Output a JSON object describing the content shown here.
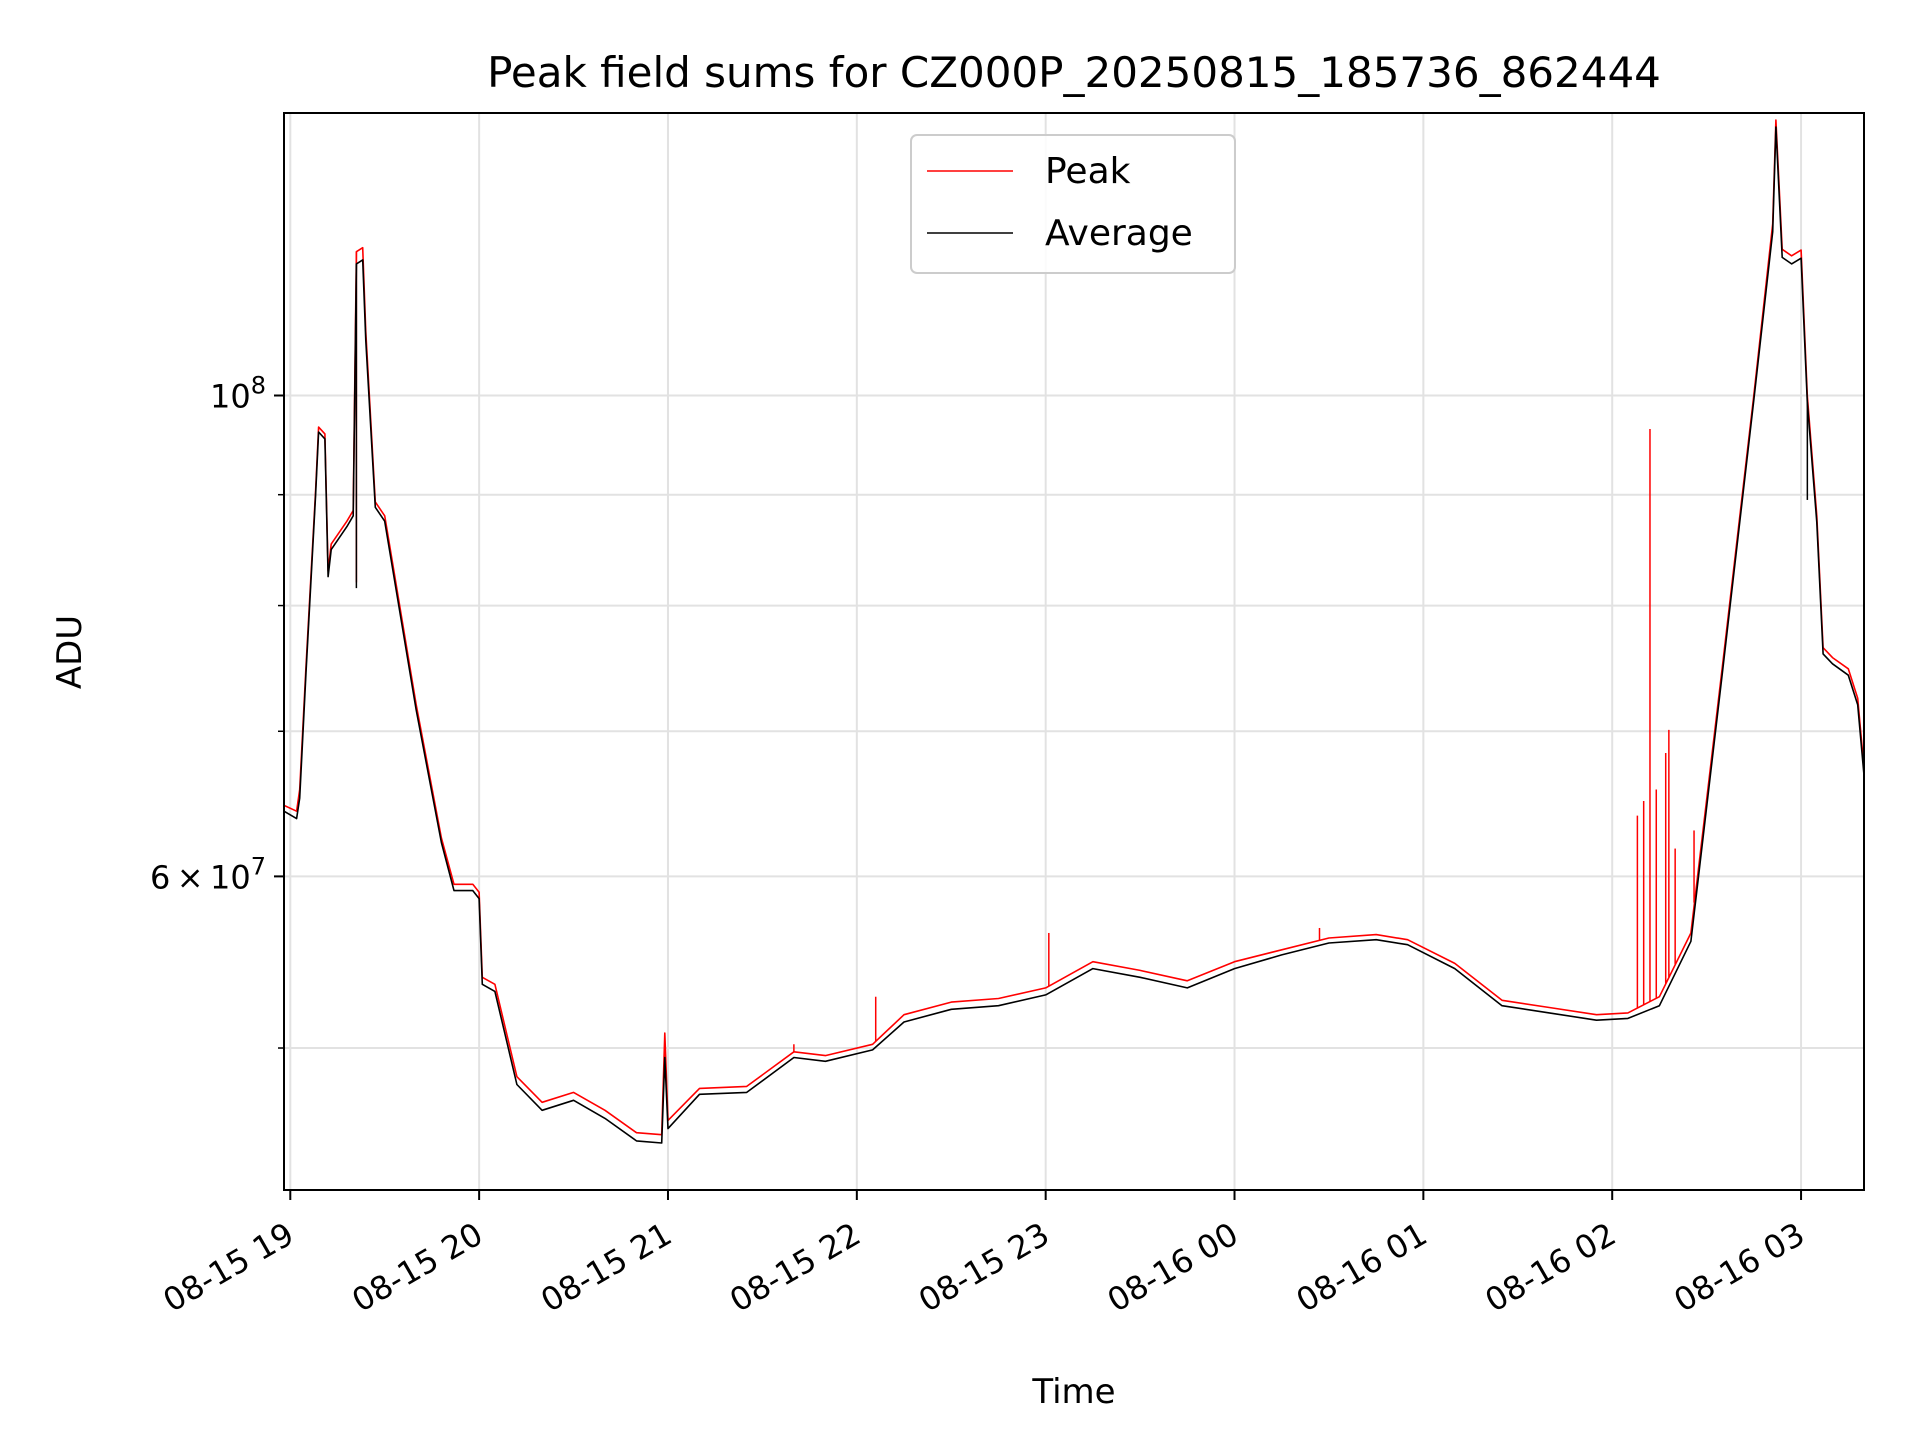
{
  "chart_data": {
    "type": "line",
    "title": "Peak field sums for CZ000P_20250815_185736_862444",
    "xlabel": "Time",
    "ylabel": "ADU",
    "yscale": "log",
    "grid": true,
    "legend_placement": "upper center",
    "xlim": [
      "2025-08-15 18:58",
      "2025-08-16 03:20"
    ],
    "ylim": [
      43000000,
      135000000
    ],
    "x_ticks": [
      {
        "value": "2025-08-15 19:00",
        "label": "08-15 19"
      },
      {
        "value": "2025-08-15 20:00",
        "label": "08-15 20"
      },
      {
        "value": "2025-08-15 21:00",
        "label": "08-15 21"
      },
      {
        "value": "2025-08-15 22:00",
        "label": "08-15 22"
      },
      {
        "value": "2025-08-15 23:00",
        "label": "08-15 23"
      },
      {
        "value": "2025-08-16 00:00",
        "label": "08-16 00"
      },
      {
        "value": "2025-08-16 01:00",
        "label": "08-16 01"
      },
      {
        "value": "2025-08-16 02:00",
        "label": "08-16 02"
      },
      {
        "value": "2025-08-16 03:00",
        "label": "08-16 03"
      }
    ],
    "y_major_ticks": [
      {
        "value": 60000000,
        "mantissa": "6",
        "times": "×",
        "base": "10",
        "exp": "7"
      },
      {
        "value": 100000000,
        "mantissa": "",
        "times": "",
        "base": "10",
        "exp": "8"
      }
    ],
    "y_minor_ticks": [
      50000000,
      70000000,
      80000000,
      90000000
    ],
    "series": [
      {
        "name": "Peak",
        "color": "#ff0000",
        "points": [
          [
            "2025-08-15 18:58",
            64700000
          ],
          [
            "2025-08-15 19:02",
            64300000
          ],
          [
            "2025-08-15 19:03",
            65800000
          ],
          [
            "2025-08-15 19:05",
            75000000
          ],
          [
            "2025-08-15 19:08",
            90200000
          ],
          [
            "2025-08-15 19:09",
            96700000
          ],
          [
            "2025-08-15 19:11",
            96000000
          ],
          [
            "2025-08-15 19:12",
            83000000
          ],
          [
            "2025-08-15 19:13",
            85400000
          ],
          [
            "2025-08-15 19:18",
            87500000
          ],
          [
            "2025-08-15 19:20",
            88500000
          ],
          [
            "2025-08-15 19:21",
            116500000
          ],
          [
            "2025-08-15 19:23",
            117000000
          ],
          [
            "2025-08-15 19:24",
            107000000
          ],
          [
            "2025-08-15 19:27",
            89300000
          ],
          [
            "2025-08-15 19:30",
            88000000
          ],
          [
            "2025-08-15 19:40",
            72000000
          ],
          [
            "2025-08-15 19:48",
            62500000
          ],
          [
            "2025-08-15 19:52",
            59500000
          ],
          [
            "2025-08-15 19:58",
            59500000
          ],
          [
            "2025-08-15 20:00",
            59000000
          ],
          [
            "2025-08-15 20:01",
            53900000
          ],
          [
            "2025-08-15 20:05",
            53500000
          ],
          [
            "2025-08-15 20:12",
            48500000
          ],
          [
            "2025-08-15 20:20",
            47200000
          ],
          [
            "2025-08-15 20:30",
            47700000
          ],
          [
            "2025-08-15 20:40",
            46800000
          ],
          [
            "2025-08-15 20:50",
            45700000
          ],
          [
            "2025-08-15 20:58",
            45600000
          ],
          [
            "2025-08-15 20:59",
            50800000
          ],
          [
            "2025-08-15 21:00",
            46300000
          ],
          [
            "2025-08-15 21:10",
            47900000
          ],
          [
            "2025-08-15 21:25",
            48000000
          ],
          [
            "2025-08-15 21:40",
            49800000
          ],
          [
            "2025-08-15 21:50",
            49600000
          ],
          [
            "2025-08-15 22:05",
            50200000
          ],
          [
            "2025-08-15 22:15",
            51800000
          ],
          [
            "2025-08-15 22:30",
            52500000
          ],
          [
            "2025-08-15 22:45",
            52700000
          ],
          [
            "2025-08-15 23:00",
            53300000
          ],
          [
            "2025-08-15 23:15",
            54800000
          ],
          [
            "2025-08-15 23:30",
            54300000
          ],
          [
            "2025-08-15 23:45",
            53700000
          ],
          [
            "2025-08-16 00:00",
            54800000
          ],
          [
            "2025-08-16 00:15",
            55500000
          ],
          [
            "2025-08-16 00:30",
            56200000
          ],
          [
            "2025-08-16 00:45",
            56400000
          ],
          [
            "2025-08-16 00:55",
            56100000
          ],
          [
            "2025-08-16 01:10",
            54700000
          ],
          [
            "2025-08-16 01:25",
            52600000
          ],
          [
            "2025-08-16 01:40",
            52200000
          ],
          [
            "2025-08-16 01:55",
            51800000
          ],
          [
            "2025-08-16 02:05",
            51900000
          ],
          [
            "2025-08-16 02:15",
            52800000
          ],
          [
            "2025-08-16 02:25",
            56500000
          ],
          [
            "2025-08-16 02:35",
            75000000
          ],
          [
            "2025-08-16 02:45",
            100000000
          ],
          [
            "2025-08-16 02:51",
            120000000
          ],
          [
            "2025-08-16 02:52",
            134000000
          ],
          [
            "2025-08-16 02:54",
            116800000
          ],
          [
            "2025-08-16 02:57",
            116000000
          ],
          [
            "2025-08-16 03:00",
            116700000
          ],
          [
            "2025-08-16 03:02",
            100000000
          ],
          [
            "2025-08-16 03:05",
            88000000
          ],
          [
            "2025-08-16 03:07",
            76500000
          ],
          [
            "2025-08-16 03:10",
            75700000
          ],
          [
            "2025-08-16 03:15",
            74800000
          ],
          [
            "2025-08-16 03:18",
            72500000
          ],
          [
            "2025-08-16 03:20",
            67300000
          ]
        ],
        "spikes": [
          [
            "2025-08-15 19:21",
            82000000
          ],
          [
            "2025-08-15 20:59",
            50800000
          ],
          [
            "2025-08-15 21:40",
            50200000
          ],
          [
            "2025-08-15 22:06",
            52800000
          ],
          [
            "2025-08-15 23:01",
            56500000
          ],
          [
            "2025-08-16 00:27",
            56800000
          ],
          [
            "2025-08-16 02:08",
            64000000
          ],
          [
            "2025-08-16 02:10",
            65000000
          ],
          [
            "2025-08-16 02:12",
            96500000
          ],
          [
            "2025-08-16 02:14",
            65800000
          ],
          [
            "2025-08-16 02:17",
            68400000
          ],
          [
            "2025-08-16 02:18",
            70100000
          ],
          [
            "2025-08-16 02:20",
            61800000
          ],
          [
            "2025-08-16 02:26",
            63000000
          ]
        ]
      },
      {
        "name": "Average",
        "color": "#000000",
        "points": [
          [
            "2025-08-15 18:58",
            64300000
          ],
          [
            "2025-08-15 19:02",
            63800000
          ],
          [
            "2025-08-15 19:03",
            65200000
          ],
          [
            "2025-08-15 19:05",
            74500000
          ],
          [
            "2025-08-15 19:08",
            89800000
          ],
          [
            "2025-08-15 19:09",
            96200000
          ],
          [
            "2025-08-15 19:11",
            95500000
          ],
          [
            "2025-08-15 19:12",
            82500000
          ],
          [
            "2025-08-15 19:13",
            84900000
          ],
          [
            "2025-08-15 19:18",
            87000000
          ],
          [
            "2025-08-15 19:20",
            88000000
          ],
          [
            "2025-08-15 19:21",
            115000000
          ],
          [
            "2025-08-15 19:23",
            115500000
          ],
          [
            "2025-08-15 19:24",
            106000000
          ],
          [
            "2025-08-15 19:27",
            88800000
          ],
          [
            "2025-08-15 19:30",
            87500000
          ],
          [
            "2025-08-15 19:40",
            71600000
          ],
          [
            "2025-08-15 19:48",
            62200000
          ],
          [
            "2025-08-15 19:52",
            59100000
          ],
          [
            "2025-08-15 19:58",
            59100000
          ],
          [
            "2025-08-15 20:00",
            58600000
          ],
          [
            "2025-08-15 20:01",
            53500000
          ],
          [
            "2025-08-15 20:05",
            53100000
          ],
          [
            "2025-08-15 20:12",
            48100000
          ],
          [
            "2025-08-15 20:20",
            46800000
          ],
          [
            "2025-08-15 20:30",
            47300000
          ],
          [
            "2025-08-15 20:40",
            46400000
          ],
          [
            "2025-08-15 20:50",
            45300000
          ],
          [
            "2025-08-15 20:58",
            45200000
          ],
          [
            "2025-08-15 20:59",
            49500000
          ],
          [
            "2025-08-15 21:00",
            45900000
          ],
          [
            "2025-08-15 21:10",
            47600000
          ],
          [
            "2025-08-15 21:25",
            47700000
          ],
          [
            "2025-08-15 21:40",
            49500000
          ],
          [
            "2025-08-15 21:50",
            49300000
          ],
          [
            "2025-08-15 22:05",
            49900000
          ],
          [
            "2025-08-15 22:15",
            51400000
          ],
          [
            "2025-08-15 22:30",
            52100000
          ],
          [
            "2025-08-15 22:45",
            52300000
          ],
          [
            "2025-08-15 23:00",
            52900000
          ],
          [
            "2025-08-15 23:15",
            54400000
          ],
          [
            "2025-08-15 23:30",
            53900000
          ],
          [
            "2025-08-15 23:45",
            53300000
          ],
          [
            "2025-08-16 00:00",
            54400000
          ],
          [
            "2025-08-16 00:15",
            55200000
          ],
          [
            "2025-08-16 00:30",
            55900000
          ],
          [
            "2025-08-16 00:45",
            56100000
          ],
          [
            "2025-08-16 00:55",
            55800000
          ],
          [
            "2025-08-16 01:10",
            54400000
          ],
          [
            "2025-08-16 01:25",
            52300000
          ],
          [
            "2025-08-16 01:40",
            51900000
          ],
          [
            "2025-08-16 01:55",
            51500000
          ],
          [
            "2025-08-16 02:05",
            51600000
          ],
          [
            "2025-08-16 02:15",
            52300000
          ],
          [
            "2025-08-16 02:25",
            56000000
          ],
          [
            "2025-08-16 02:35",
            74500000
          ],
          [
            "2025-08-16 02:45",
            99500000
          ],
          [
            "2025-08-16 02:51",
            119000000
          ],
          [
            "2025-08-16 02:52",
            133000000
          ],
          [
            "2025-08-16 02:54",
            115800000
          ],
          [
            "2025-08-16 02:57",
            115000000
          ],
          [
            "2025-08-16 03:00",
            115700000
          ],
          [
            "2025-08-16 03:02",
            99300000
          ],
          [
            "2025-08-16 03:05",
            87400000
          ],
          [
            "2025-08-16 03:07",
            76000000
          ],
          [
            "2025-08-16 03:10",
            75200000
          ],
          [
            "2025-08-16 03:15",
            74300000
          ],
          [
            "2025-08-16 03:18",
            72000000
          ],
          [
            "2025-08-16 03:20",
            66800000
          ]
        ],
        "spikes": [
          [
            "2025-08-15 19:21",
            81500000
          ],
          [
            "2025-08-15 20:59",
            49500000
          ],
          [
            "2025-08-16 03:02",
            89500000
          ]
        ]
      }
    ]
  }
}
